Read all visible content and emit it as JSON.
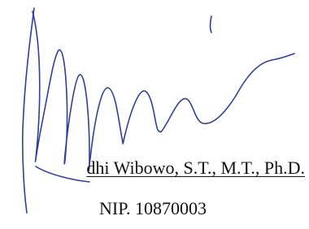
{
  "signature_name": "dhi Wibowo, S.T., M.T., Ph.D.",
  "nip": "NIP. 10870003"
}
